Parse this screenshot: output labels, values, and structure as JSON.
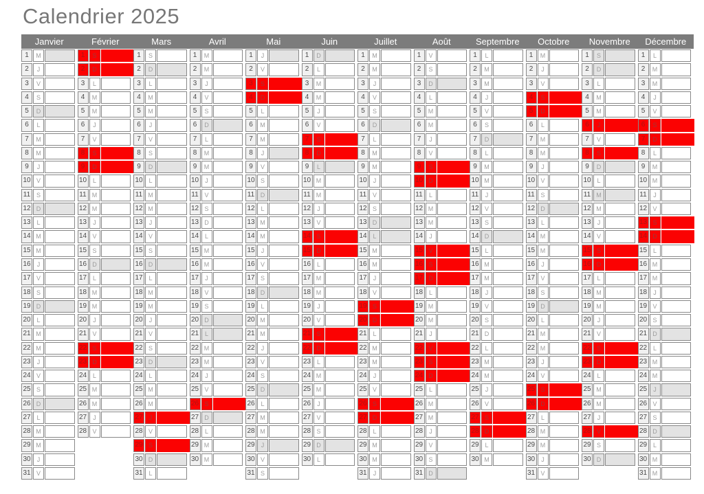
{
  "title": "Calendrier 2025",
  "colors": {
    "title_text": "#777777",
    "header_bg": "#7c7c7c",
    "header_text": "#ffffff",
    "number_cell_bg": "#f1f1f1",
    "gray_highlight": "#e3e3e3",
    "red_highlight": "#fb0202",
    "cell_border": "#878787"
  },
  "legend_statuses": {
    "": "normal white cell",
    "g": "gray highlight on day-letter and note cells",
    "h": "gray highlight on note cell only",
    "r": "red highlight across whole row"
  },
  "months": [
    {
      "name": "Janvier",
      "days": [
        [
          "M",
          "h"
        ],
        [
          "J",
          ""
        ],
        [
          "V",
          ""
        ],
        [
          "S",
          ""
        ],
        [
          "D",
          "g"
        ],
        [
          "L",
          ""
        ],
        [
          "M",
          ""
        ],
        [
          "M",
          ""
        ],
        [
          "J",
          ""
        ],
        [
          "V",
          ""
        ],
        [
          "S",
          ""
        ],
        [
          "D",
          "g"
        ],
        [
          "L",
          ""
        ],
        [
          "M",
          ""
        ],
        [
          "M",
          ""
        ],
        [
          "J",
          ""
        ],
        [
          "V",
          ""
        ],
        [
          "S",
          ""
        ],
        [
          "D",
          "g"
        ],
        [
          "L",
          ""
        ],
        [
          "M",
          ""
        ],
        [
          "M",
          ""
        ],
        [
          "J",
          ""
        ],
        [
          "V",
          ""
        ],
        [
          "S",
          ""
        ],
        [
          "D",
          "g"
        ],
        [
          "L",
          ""
        ],
        [
          "M",
          ""
        ],
        [
          "M",
          ""
        ],
        [
          "J",
          ""
        ],
        [
          "V",
          ""
        ]
      ]
    },
    {
      "name": "Février",
      "days": [
        [
          "S",
          "r"
        ],
        [
          "D",
          "r"
        ],
        [
          "L",
          ""
        ],
        [
          "M",
          ""
        ],
        [
          "M",
          ""
        ],
        [
          "J",
          ""
        ],
        [
          "V",
          ""
        ],
        [
          "S",
          "r"
        ],
        [
          "D",
          "r"
        ],
        [
          "L",
          ""
        ],
        [
          "M",
          ""
        ],
        [
          "M",
          ""
        ],
        [
          "J",
          ""
        ],
        [
          "V",
          ""
        ],
        [
          "S",
          ""
        ],
        [
          "D",
          "g"
        ],
        [
          "L",
          ""
        ],
        [
          "M",
          ""
        ],
        [
          "M",
          ""
        ],
        [
          "J",
          ""
        ],
        [
          "V",
          ""
        ],
        [
          "S",
          "r"
        ],
        [
          "D",
          "r"
        ],
        [
          "L",
          ""
        ],
        [
          "M",
          ""
        ],
        [
          "M",
          ""
        ],
        [
          "J",
          ""
        ],
        [
          "V",
          ""
        ]
      ]
    },
    {
      "name": "Mars",
      "days": [
        [
          "S",
          ""
        ],
        [
          "D",
          "g"
        ],
        [
          "L",
          ""
        ],
        [
          "M",
          ""
        ],
        [
          "M",
          ""
        ],
        [
          "J",
          ""
        ],
        [
          "V",
          ""
        ],
        [
          "S",
          ""
        ],
        [
          "D",
          "g"
        ],
        [
          "L",
          ""
        ],
        [
          "M",
          ""
        ],
        [
          "M",
          ""
        ],
        [
          "J",
          ""
        ],
        [
          "V",
          ""
        ],
        [
          "S",
          ""
        ],
        [
          "D",
          "g"
        ],
        [
          "L",
          ""
        ],
        [
          "M",
          ""
        ],
        [
          "M",
          ""
        ],
        [
          "J",
          ""
        ],
        [
          "V",
          ""
        ],
        [
          "S",
          ""
        ],
        [
          "D",
          "g"
        ],
        [
          "L",
          ""
        ],
        [
          "M",
          ""
        ],
        [
          "M",
          ""
        ],
        [
          "J",
          "r"
        ],
        [
          "V",
          ""
        ],
        [
          "S",
          "r"
        ],
        [
          "D",
          "g"
        ],
        [
          "L",
          ""
        ]
      ]
    },
    {
      "name": "Avril",
      "days": [
        [
          "M",
          ""
        ],
        [
          "M",
          ""
        ],
        [
          "J",
          ""
        ],
        [
          "V",
          ""
        ],
        [
          "S",
          ""
        ],
        [
          "D",
          "g"
        ],
        [
          "L",
          ""
        ],
        [
          "M",
          ""
        ],
        [
          "M",
          ""
        ],
        [
          "J",
          ""
        ],
        [
          "V",
          ""
        ],
        [
          "S",
          ""
        ],
        [
          "D",
          ""
        ],
        [
          "L",
          ""
        ],
        [
          "M",
          ""
        ],
        [
          "M",
          ""
        ],
        [
          "J",
          ""
        ],
        [
          "V",
          ""
        ],
        [
          "S",
          ""
        ],
        [
          "D",
          "g"
        ],
        [
          "L",
          "g"
        ],
        [
          "M",
          ""
        ],
        [
          "M",
          ""
        ],
        [
          "J",
          ""
        ],
        [
          "V",
          ""
        ],
        [
          "S",
          "r"
        ],
        [
          "D",
          "g"
        ],
        [
          "L",
          ""
        ],
        [
          "M",
          ""
        ],
        [
          "M",
          ""
        ]
      ]
    },
    {
      "name": "Mai",
      "days": [
        [
          "J",
          "h"
        ],
        [
          "V",
          ""
        ],
        [
          "S",
          "r"
        ],
        [
          "D",
          "r"
        ],
        [
          "L",
          ""
        ],
        [
          "M",
          ""
        ],
        [
          "M",
          ""
        ],
        [
          "J",
          "h"
        ],
        [
          "V",
          ""
        ],
        [
          "S",
          ""
        ],
        [
          "D",
          "g"
        ],
        [
          "L",
          ""
        ],
        [
          "M",
          ""
        ],
        [
          "M",
          ""
        ],
        [
          "J",
          ""
        ],
        [
          "V",
          ""
        ],
        [
          "S",
          ""
        ],
        [
          "D",
          "g"
        ],
        [
          "L",
          ""
        ],
        [
          "M",
          ""
        ],
        [
          "M",
          ""
        ],
        [
          "J",
          ""
        ],
        [
          "V",
          ""
        ],
        [
          "S",
          ""
        ],
        [
          "D",
          "g"
        ],
        [
          "L",
          ""
        ],
        [
          "M",
          ""
        ],
        [
          "M",
          ""
        ],
        [
          "J",
          "g"
        ],
        [
          "V",
          ""
        ],
        [
          "S",
          ""
        ]
      ]
    },
    {
      "name": "Juin",
      "days": [
        [
          "D",
          "g"
        ],
        [
          "L",
          ""
        ],
        [
          "M",
          ""
        ],
        [
          "M",
          ""
        ],
        [
          "J",
          ""
        ],
        [
          "V",
          ""
        ],
        [
          "S",
          "r"
        ],
        [
          "D",
          "r"
        ],
        [
          "L",
          "g"
        ],
        [
          "M",
          ""
        ],
        [
          "M",
          ""
        ],
        [
          "J",
          ""
        ],
        [
          "V",
          ""
        ],
        [
          "S",
          "r"
        ],
        [
          "D",
          "r"
        ],
        [
          "L",
          ""
        ],
        [
          "M",
          ""
        ],
        [
          "M",
          ""
        ],
        [
          "J",
          ""
        ],
        [
          "V",
          ""
        ],
        [
          "S",
          "r"
        ],
        [
          "D",
          "r"
        ],
        [
          "L",
          ""
        ],
        [
          "M",
          ""
        ],
        [
          "M",
          ""
        ],
        [
          "J",
          ""
        ],
        [
          "V",
          ""
        ],
        [
          "S",
          ""
        ],
        [
          "D",
          "g"
        ],
        [
          "L",
          ""
        ]
      ]
    },
    {
      "name": "Juillet",
      "days": [
        [
          "M",
          ""
        ],
        [
          "M",
          ""
        ],
        [
          "J",
          ""
        ],
        [
          "V",
          ""
        ],
        [
          "S",
          ""
        ],
        [
          "D",
          "g"
        ],
        [
          "L",
          ""
        ],
        [
          "M",
          ""
        ],
        [
          "M",
          ""
        ],
        [
          "J",
          ""
        ],
        [
          "V",
          ""
        ],
        [
          "S",
          ""
        ],
        [
          "D",
          "g"
        ],
        [
          "L",
          "g"
        ],
        [
          "M",
          ""
        ],
        [
          "M",
          ""
        ],
        [
          "J",
          ""
        ],
        [
          "V",
          ""
        ],
        [
          "S",
          "r"
        ],
        [
          "D",
          "r"
        ],
        [
          "L",
          ""
        ],
        [
          "M",
          ""
        ],
        [
          "M",
          ""
        ],
        [
          "J",
          ""
        ],
        [
          "V",
          ""
        ],
        [
          "S",
          "r"
        ],
        [
          "D",
          "r"
        ],
        [
          "L",
          ""
        ],
        [
          "M",
          ""
        ],
        [
          "M",
          ""
        ],
        [
          "J",
          ""
        ]
      ]
    },
    {
      "name": "Août",
      "days": [
        [
          "V",
          ""
        ],
        [
          "S",
          ""
        ],
        [
          "D",
          "g"
        ],
        [
          "L",
          ""
        ],
        [
          "M",
          ""
        ],
        [
          "M",
          ""
        ],
        [
          "J",
          ""
        ],
        [
          "V",
          ""
        ],
        [
          "S",
          "r"
        ],
        [
          "D",
          "r"
        ],
        [
          "L",
          ""
        ],
        [
          "M",
          ""
        ],
        [
          "M",
          ""
        ],
        [
          "J",
          ""
        ],
        [
          "V",
          "r"
        ],
        [
          "S",
          "r"
        ],
        [
          "D",
          "r"
        ],
        [
          "L",
          ""
        ],
        [
          "M",
          ""
        ],
        [
          "M",
          ""
        ],
        [
          "J",
          ""
        ],
        [
          "V",
          "r"
        ],
        [
          "S",
          "r"
        ],
        [
          "D",
          "r"
        ],
        [
          "L",
          ""
        ],
        [
          "M",
          ""
        ],
        [
          "M",
          ""
        ],
        [
          "J",
          ""
        ],
        [
          "V",
          ""
        ],
        [
          "S",
          ""
        ],
        [
          "D",
          "g"
        ]
      ]
    },
    {
      "name": "Septembre",
      "days": [
        [
          "L",
          ""
        ],
        [
          "M",
          ""
        ],
        [
          "M",
          ""
        ],
        [
          "J",
          ""
        ],
        [
          "V",
          ""
        ],
        [
          "S",
          ""
        ],
        [
          "D",
          "g"
        ],
        [
          "L",
          ""
        ],
        [
          "M",
          ""
        ],
        [
          "M",
          ""
        ],
        [
          "J",
          ""
        ],
        [
          "V",
          ""
        ],
        [
          "S",
          ""
        ],
        [
          "D",
          "g"
        ],
        [
          "L",
          ""
        ],
        [
          "M",
          ""
        ],
        [
          "M",
          ""
        ],
        [
          "J",
          ""
        ],
        [
          "V",
          ""
        ],
        [
          "S",
          ""
        ],
        [
          "D",
          ""
        ],
        [
          "L",
          ""
        ],
        [
          "M",
          ""
        ],
        [
          "M",
          ""
        ],
        [
          "J",
          ""
        ],
        [
          "V",
          ""
        ],
        [
          "S",
          "r"
        ],
        [
          "D",
          "r"
        ],
        [
          "L",
          ""
        ],
        [
          "M",
          ""
        ]
      ]
    },
    {
      "name": "Octobre",
      "days": [
        [
          "M",
          ""
        ],
        [
          "J",
          ""
        ],
        [
          "V",
          ""
        ],
        [
          "S",
          "r"
        ],
        [
          "D",
          "r"
        ],
        [
          "L",
          ""
        ],
        [
          "M",
          ""
        ],
        [
          "M",
          ""
        ],
        [
          "J",
          ""
        ],
        [
          "V",
          ""
        ],
        [
          "S",
          ""
        ],
        [
          "D",
          "g"
        ],
        [
          "L",
          ""
        ],
        [
          "M",
          ""
        ],
        [
          "M",
          ""
        ],
        [
          "J",
          ""
        ],
        [
          "V",
          ""
        ],
        [
          "S",
          ""
        ],
        [
          "D",
          "g"
        ],
        [
          "L",
          ""
        ],
        [
          "M",
          ""
        ],
        [
          "M",
          ""
        ],
        [
          "J",
          ""
        ],
        [
          "V",
          ""
        ],
        [
          "S",
          "r"
        ],
        [
          "D",
          "r"
        ],
        [
          "L",
          ""
        ],
        [
          "M",
          ""
        ],
        [
          "M",
          ""
        ],
        [
          "J",
          ""
        ],
        [
          "V",
          ""
        ]
      ]
    },
    {
      "name": "Novembre",
      "days": [
        [
          "S",
          "g"
        ],
        [
          "D",
          "g"
        ],
        [
          "L",
          ""
        ],
        [
          "M",
          ""
        ],
        [
          "M",
          ""
        ],
        [
          "J",
          "r"
        ],
        [
          "V",
          ""
        ],
        [
          "S",
          "r"
        ],
        [
          "D",
          "g"
        ],
        [
          "L",
          ""
        ],
        [
          "M",
          "g"
        ],
        [
          "M",
          ""
        ],
        [
          "J",
          ""
        ],
        [
          "V",
          ""
        ],
        [
          "S",
          "r"
        ],
        [
          "D",
          "r"
        ],
        [
          "L",
          ""
        ],
        [
          "M",
          ""
        ],
        [
          "M",
          ""
        ],
        [
          "J",
          ""
        ],
        [
          "V",
          ""
        ],
        [
          "S",
          "r"
        ],
        [
          "D",
          "r"
        ],
        [
          "L",
          ""
        ],
        [
          "M",
          ""
        ],
        [
          "M",
          ""
        ],
        [
          "J",
          ""
        ],
        [
          "V",
          "r"
        ],
        [
          "S",
          ""
        ],
        [
          "D",
          "g"
        ]
      ]
    },
    {
      "name": "Décembre",
      "days": [
        [
          "L",
          ""
        ],
        [
          "M",
          ""
        ],
        [
          "M",
          ""
        ],
        [
          "J",
          ""
        ],
        [
          "V",
          ""
        ],
        [
          "S",
          "r"
        ],
        [
          "D",
          "r"
        ],
        [
          "L",
          ""
        ],
        [
          "M",
          ""
        ],
        [
          "M",
          ""
        ],
        [
          "J",
          ""
        ],
        [
          "V",
          ""
        ],
        [
          "S",
          "r"
        ],
        [
          "D",
          "r"
        ],
        [
          "L",
          ""
        ],
        [
          "M",
          ""
        ],
        [
          "M",
          ""
        ],
        [
          "J",
          ""
        ],
        [
          "V",
          ""
        ],
        [
          "S",
          ""
        ],
        [
          "D",
          "g"
        ],
        [
          "L",
          ""
        ],
        [
          "M",
          ""
        ],
        [
          "M",
          ""
        ],
        [
          "J",
          "g"
        ],
        [
          "V",
          ""
        ],
        [
          "S",
          ""
        ],
        [
          "D",
          "g"
        ],
        [
          "L",
          ""
        ],
        [
          "M",
          ""
        ],
        [
          "M",
          ""
        ]
      ]
    }
  ]
}
